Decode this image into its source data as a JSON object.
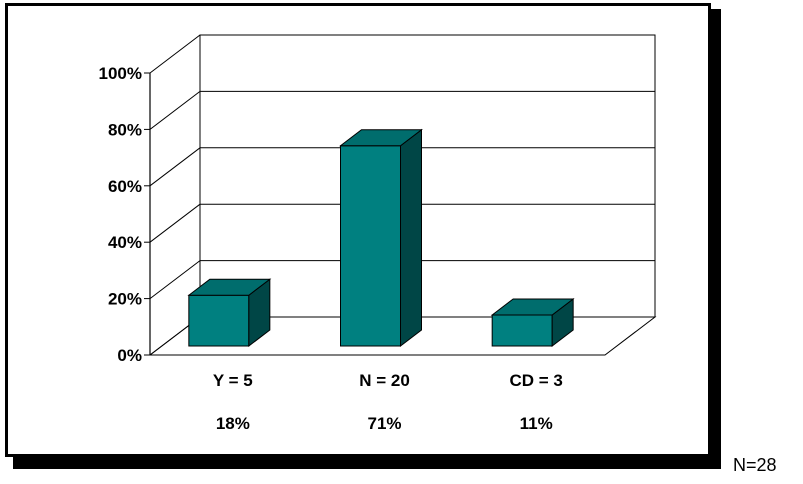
{
  "chart_data": {
    "type": "bar",
    "categories": [
      "Y = 5",
      "N = 20",
      "CD = 3"
    ],
    "values": [
      18,
      71,
      11
    ],
    "value_labels": [
      "18%",
      "71%",
      "11%"
    ],
    "ylim": [
      0,
      100
    ],
    "yticks": [
      "0%",
      "20%",
      "40%",
      "60%",
      "80%",
      "100%"
    ],
    "grid": true,
    "three_d": true,
    "bar_color": "#008080",
    "title": "",
    "xlabel": "",
    "ylabel": ""
  },
  "footnote": "N=28"
}
